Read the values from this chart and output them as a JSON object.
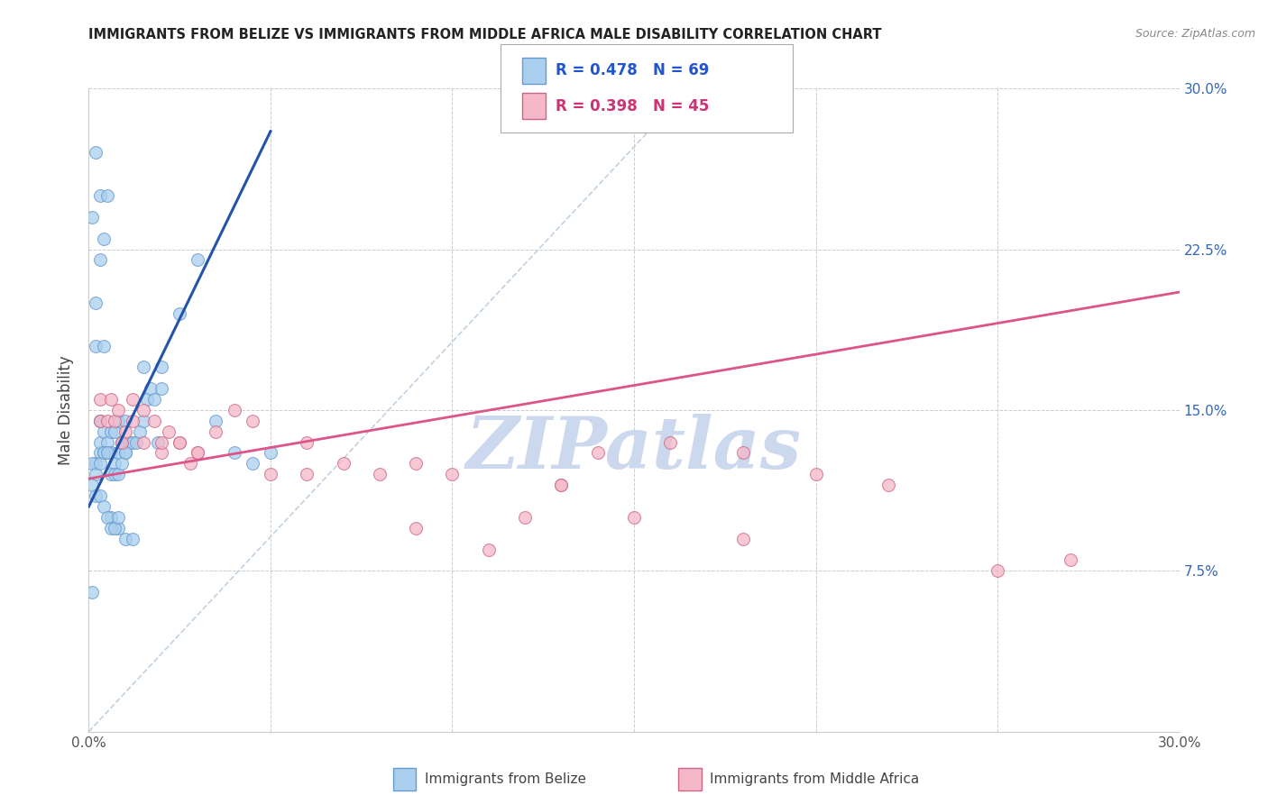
{
  "title": "IMMIGRANTS FROM BELIZE VS IMMIGRANTS FROM MIDDLE AFRICA MALE DISABILITY CORRELATION CHART",
  "source": "Source: ZipAtlas.com",
  "ylabel": "Male Disability",
  "xlim": [
    0.0,
    0.3
  ],
  "ylim": [
    0.0,
    0.3
  ],
  "xticks": [
    0.0,
    0.05,
    0.1,
    0.15,
    0.2,
    0.25,
    0.3
  ],
  "yticks": [
    0.0,
    0.075,
    0.15,
    0.225,
    0.3
  ],
  "xtick_labels": [
    "0.0%",
    "",
    "",
    "",
    "",
    "",
    "30.0%"
  ],
  "ytick_labels_right": [
    "",
    "7.5%",
    "15.0%",
    "22.5%",
    "30.0%"
  ],
  "scatter1_color": "#aacfee",
  "scatter1_edge": "#6699cc",
  "scatter2_color": "#f5b8c8",
  "scatter2_edge": "#cc6688",
  "line1_color": "#2255aa",
  "line2_color": "#dd5588",
  "dashed_line_color": "#bbccdd",
  "watermark": "ZIPatlas",
  "watermark_color": "#ccd8ee",
  "belize_x": [
    0.001,
    0.002,
    0.002,
    0.003,
    0.003,
    0.003,
    0.004,
    0.004,
    0.005,
    0.005,
    0.006,
    0.006,
    0.007,
    0.007,
    0.008,
    0.008,
    0.009,
    0.009,
    0.01,
    0.01,
    0.011,
    0.012,
    0.013,
    0.014,
    0.015,
    0.016,
    0.017,
    0.018,
    0.019,
    0.02,
    0.001,
    0.002,
    0.003,
    0.004,
    0.005,
    0.006,
    0.007,
    0.008,
    0.009,
    0.01,
    0.002,
    0.003,
    0.004,
    0.005,
    0.006,
    0.008,
    0.01,
    0.012,
    0.015,
    0.02,
    0.001,
    0.002,
    0.003,
    0.004,
    0.005,
    0.006,
    0.007,
    0.008,
    0.003,
    0.025,
    0.03,
    0.035,
    0.04,
    0.045,
    0.05,
    0.002,
    0.004,
    0.001,
    0.003
  ],
  "belize_y": [
    0.065,
    0.125,
    0.2,
    0.13,
    0.135,
    0.145,
    0.13,
    0.14,
    0.13,
    0.135,
    0.13,
    0.14,
    0.125,
    0.14,
    0.13,
    0.145,
    0.135,
    0.135,
    0.13,
    0.145,
    0.135,
    0.135,
    0.135,
    0.14,
    0.145,
    0.155,
    0.16,
    0.155,
    0.135,
    0.16,
    0.125,
    0.12,
    0.125,
    0.13,
    0.13,
    0.12,
    0.12,
    0.12,
    0.125,
    0.13,
    0.27,
    0.25,
    0.23,
    0.25,
    0.1,
    0.095,
    0.09,
    0.09,
    0.17,
    0.17,
    0.115,
    0.11,
    0.11,
    0.105,
    0.1,
    0.095,
    0.095,
    0.1,
    0.22,
    0.195,
    0.22,
    0.145,
    0.13,
    0.125,
    0.13,
    0.18,
    0.18,
    0.24,
    0.145
  ],
  "middle_africa_x": [
    0.003,
    0.005,
    0.007,
    0.008,
    0.01,
    0.012,
    0.015,
    0.018,
    0.02,
    0.022,
    0.025,
    0.028,
    0.03,
    0.035,
    0.04,
    0.045,
    0.05,
    0.06,
    0.07,
    0.08,
    0.09,
    0.1,
    0.12,
    0.13,
    0.14,
    0.16,
    0.18,
    0.2,
    0.22,
    0.25,
    0.003,
    0.006,
    0.009,
    0.012,
    0.015,
    0.02,
    0.025,
    0.03,
    0.06,
    0.09,
    0.11,
    0.13,
    0.15,
    0.18,
    0.27
  ],
  "middle_africa_y": [
    0.145,
    0.145,
    0.145,
    0.15,
    0.14,
    0.155,
    0.15,
    0.145,
    0.13,
    0.14,
    0.135,
    0.125,
    0.13,
    0.14,
    0.15,
    0.145,
    0.12,
    0.135,
    0.125,
    0.12,
    0.125,
    0.12,
    0.1,
    0.115,
    0.13,
    0.135,
    0.13,
    0.12,
    0.115,
    0.075,
    0.155,
    0.155,
    0.135,
    0.145,
    0.135,
    0.135,
    0.135,
    0.13,
    0.12,
    0.095,
    0.085,
    0.115,
    0.1,
    0.09,
    0.08
  ],
  "belize_line_x": [
    0.0,
    0.05
  ],
  "belize_line_y": [
    0.105,
    0.28
  ],
  "middle_africa_line_x": [
    0.0,
    0.3
  ],
  "middle_africa_line_y": [
    0.118,
    0.205
  ],
  "dashed_line_x": [
    0.0,
    0.165
  ],
  "dashed_line_y": [
    0.0,
    0.3
  ],
  "footer_label1": "Immigrants from Belize",
  "footer_label2": "Immigrants from Middle Africa"
}
